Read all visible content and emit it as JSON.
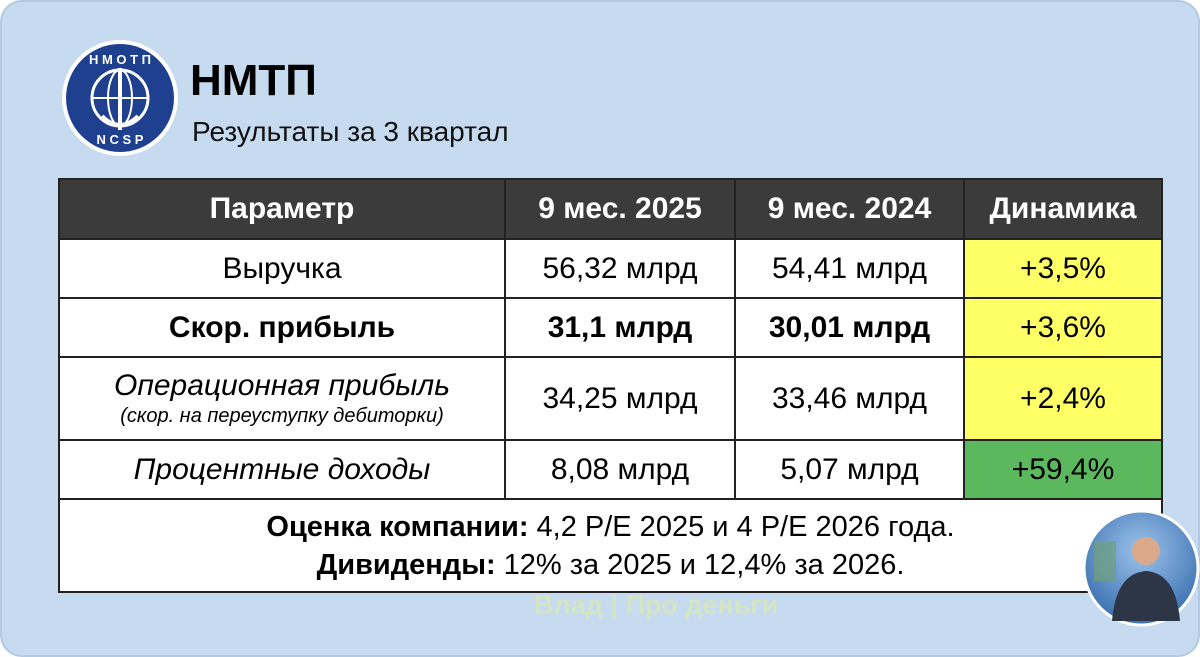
{
  "header": {
    "logo_top": "Н М О Т П",
    "logo_bottom": "N C S P",
    "title": "НМТП",
    "subtitle": "Результаты за 3 квартал"
  },
  "table": {
    "headers": [
      "Параметр",
      "9 мес. 2025",
      "9 мес. 2024",
      "Динамика"
    ],
    "rows": [
      [
        "Выручка",
        "56,32 млрд",
        "54,41 млрд",
        "+3,5%"
      ],
      [
        "Скор. прибыль",
        "31,1 млрд",
        "30,01 млрд",
        "+3,6%"
      ],
      [
        "Операционная прибыль",
        "34,25 млрд",
        "33,46 млрд",
        "+2,4%"
      ],
      [
        "Процентные доходы",
        "8,08 млрд",
        "5,07 млрд",
        "+59,4%"
      ]
    ],
    "operating_note": "(скор. на переуступку дебиторки)",
    "footer": [
      {
        "label": "Оценка компании:",
        "text": "4,2 P/E 2025 и 4 P/E 2026 года."
      },
      {
        "label": "Дивиденды:",
        "text": "12% за 2025 и 12,4% за 2026."
      }
    ]
  },
  "watermark": "Влад | Про деньги"
}
